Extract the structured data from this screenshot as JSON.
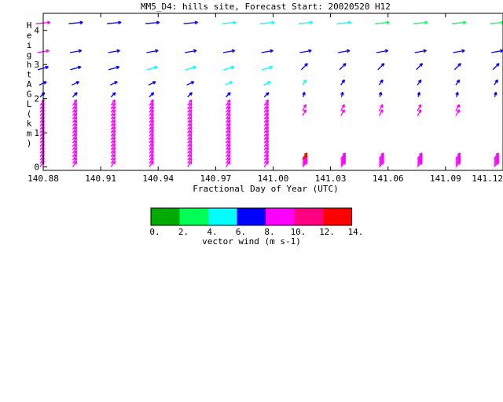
{
  "chart_data": {
    "type": "vector-profile",
    "title": "MM5_D4: hills site,  Forecast Start: 20020520 H12",
    "xlabel": "Fractional Day of Year (UTC)",
    "ylabel": "Height AGL (km)",
    "x_ticks": [
      "140.88",
      "140.91",
      "140.94",
      "140.97",
      "141.00",
      "141.03",
      "141.06",
      "141.09",
      "141.12"
    ],
    "y_ticks": [
      "0",
      "1",
      "2",
      "3",
      "4"
    ],
    "xlim": [
      140.88,
      141.12
    ],
    "ylim": [
      -0.1,
      4.5
    ],
    "times": [
      140.88,
      140.897,
      140.917,
      140.937,
      140.957,
      140.977,
      140.997,
      141.017,
      141.037,
      141.057,
      141.077,
      141.097,
      141.117
    ],
    "upper_levels_km": [
      4.2,
      3.35,
      2.85,
      2.4,
      2.05
    ],
    "color_scale": {
      "title": "vector wind (m s-1)",
      "ticks": [
        "0.",
        "2.",
        "4.",
        "6.",
        "8.",
        "10.",
        "12.",
        "14."
      ],
      "colors": [
        "#00aa00",
        "#00ff55",
        "#00ffff",
        "#0000ff",
        "#ff00ff",
        "#ff0080",
        "#ff0000"
      ]
    }
  }
}
